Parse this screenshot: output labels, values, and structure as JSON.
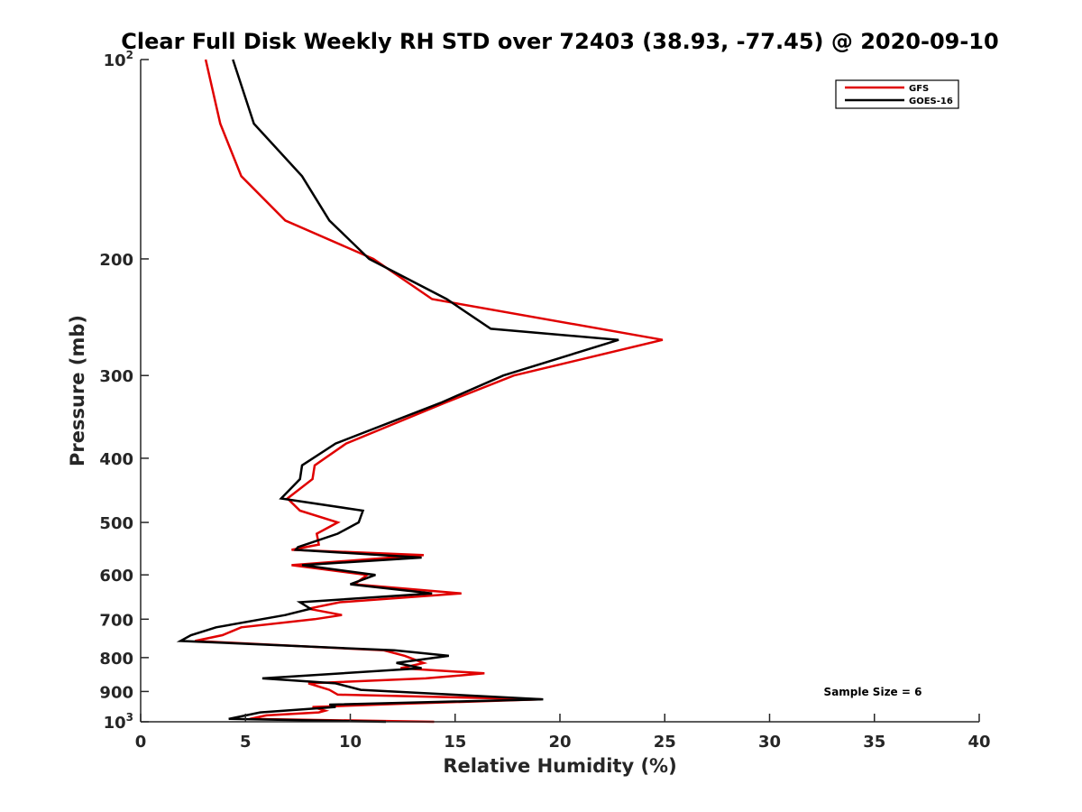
{
  "chart_data": {
    "type": "line",
    "title": "Clear Full Disk Weekly RH STD over 72403 (38.93, -77.45) @ 2020-09-10",
    "xlabel": "Relative Humidity (%)",
    "ylabel": "Pressure (mb)",
    "xlim": [
      0,
      40
    ],
    "ylim": [
      100,
      1000
    ],
    "y_scale": "log",
    "y_reversed": true,
    "x_ticks": [
      "0",
      "5",
      "10",
      "15",
      "20",
      "25",
      "30",
      "35",
      "40"
    ],
    "y_ticks": [
      {
        "value": 100,
        "label": "10",
        "exp": "2"
      },
      {
        "value": 200,
        "label": "200",
        "exp": ""
      },
      {
        "value": 300,
        "label": "300",
        "exp": ""
      },
      {
        "value": 400,
        "label": "400",
        "exp": ""
      },
      {
        "value": 500,
        "label": "500",
        "exp": ""
      },
      {
        "value": 600,
        "label": "600",
        "exp": ""
      },
      {
        "value": 700,
        "label": "700",
        "exp": ""
      },
      {
        "value": 800,
        "label": "800",
        "exp": ""
      },
      {
        "value": 900,
        "label": "900",
        "exp": ""
      },
      {
        "value": 1000,
        "label": "10",
        "exp": "3"
      }
    ],
    "legend_position": "top-right",
    "annotation": "Sample Size = 6",
    "series": [
      {
        "name": "GFS",
        "color": "#e00000",
        "points": [
          [
            3.1,
            100
          ],
          [
            3.8,
            125
          ],
          [
            4.8,
            150
          ],
          [
            6.9,
            175
          ],
          [
            11.1,
            200
          ],
          [
            13.9,
            230
          ],
          [
            24.9,
            265
          ],
          [
            17.8,
            300
          ],
          [
            14.5,
            330
          ],
          [
            9.8,
            380
          ],
          [
            8.3,
            410
          ],
          [
            8.2,
            430
          ],
          [
            7.0,
            460
          ],
          [
            7.6,
            480
          ],
          [
            9.4,
            500
          ],
          [
            8.4,
            520
          ],
          [
            8.5,
            540
          ],
          [
            7.2,
            550
          ],
          [
            13.5,
            560
          ],
          [
            7.2,
            580
          ],
          [
            10.8,
            600
          ],
          [
            10.2,
            620
          ],
          [
            15.3,
            640
          ],
          [
            9.5,
            660
          ],
          [
            8.0,
            675
          ],
          [
            9.6,
            690
          ],
          [
            8.3,
            700
          ],
          [
            4.8,
            720
          ],
          [
            3.9,
            740
          ],
          [
            2.6,
            755
          ],
          [
            11.6,
            780
          ],
          [
            12.6,
            795
          ],
          [
            13.5,
            815
          ],
          [
            12.4,
            830
          ],
          [
            16.4,
            845
          ],
          [
            13.6,
            860
          ],
          [
            8.0,
            875
          ],
          [
            9.0,
            895
          ],
          [
            9.4,
            910
          ],
          [
            19.1,
            925
          ],
          [
            12.2,
            940
          ],
          [
            8.2,
            950
          ],
          [
            8.8,
            962
          ],
          [
            8.5,
            968
          ],
          [
            6.0,
            978
          ],
          [
            5.2,
            990
          ],
          [
            14.0,
            1000
          ]
        ]
      },
      {
        "name": "GOES-16",
        "color": "#000000",
        "points": [
          [
            4.4,
            100
          ],
          [
            5.4,
            125
          ],
          [
            7.7,
            150
          ],
          [
            9.0,
            175
          ],
          [
            10.9,
            200
          ],
          [
            14.6,
            230
          ],
          [
            16.7,
            255
          ],
          [
            22.8,
            265
          ],
          [
            17.3,
            300
          ],
          [
            14.3,
            330
          ],
          [
            9.3,
            380
          ],
          [
            7.7,
            410
          ],
          [
            7.6,
            430
          ],
          [
            6.7,
            460
          ],
          [
            10.6,
            480
          ],
          [
            10.4,
            500
          ],
          [
            9.4,
            520
          ],
          [
            7.5,
            545
          ],
          [
            7.4,
            550
          ],
          [
            13.4,
            565
          ],
          [
            7.7,
            580
          ],
          [
            11.2,
            600
          ],
          [
            10.0,
            620
          ],
          [
            13.9,
            640
          ],
          [
            7.6,
            660
          ],
          [
            8.1,
            675
          ],
          [
            6.9,
            690
          ],
          [
            3.6,
            720
          ],
          [
            2.4,
            740
          ],
          [
            1.9,
            755
          ],
          [
            12.1,
            780
          ],
          [
            14.7,
            795
          ],
          [
            12.2,
            815
          ],
          [
            13.4,
            830
          ],
          [
            5.8,
            860
          ],
          [
            9.3,
            875
          ],
          [
            10.5,
            895
          ],
          [
            19.2,
            925
          ],
          [
            9.0,
            942
          ],
          [
            9.3,
            950
          ],
          [
            5.7,
            968
          ],
          [
            4.2,
            990
          ],
          [
            11.7,
            1000
          ]
        ]
      }
    ]
  }
}
